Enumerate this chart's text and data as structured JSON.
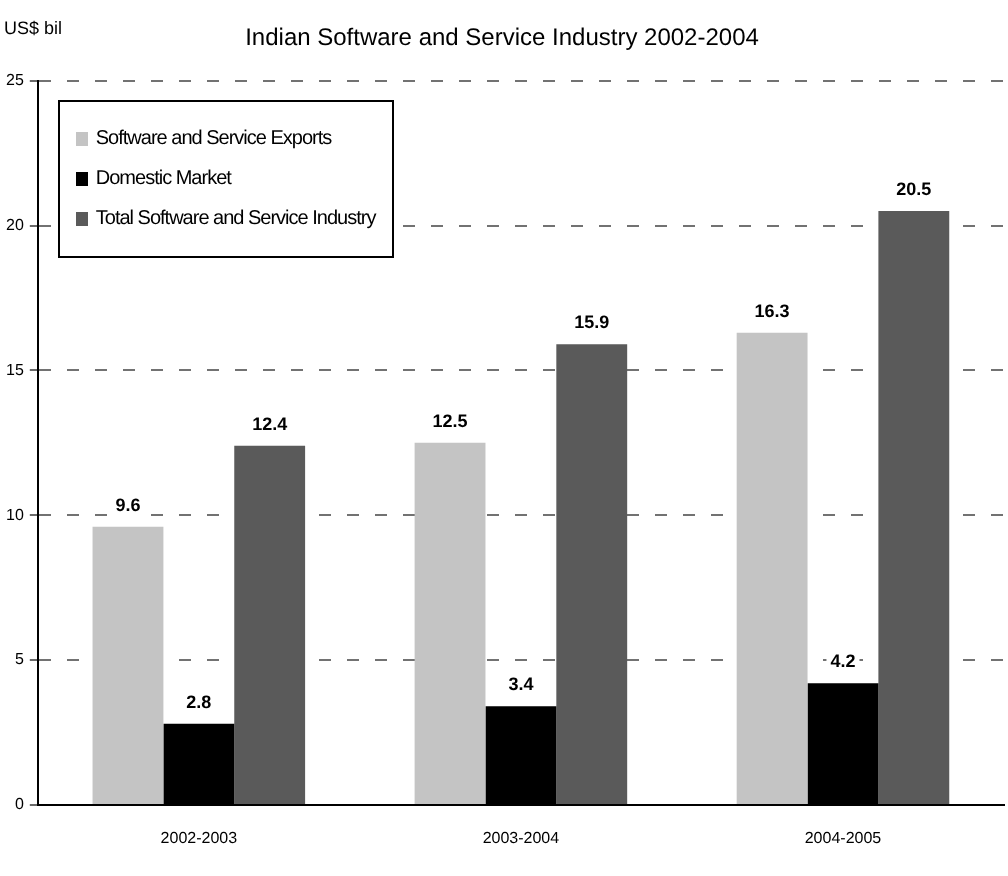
{
  "chart_data": {
    "type": "bar",
    "title": "Indian Software and Service Industry 2002-2004",
    "ylabel": "US$ bil",
    "categories": [
      "2002-2003",
      "2003-2004",
      "2004-2005"
    ],
    "series": [
      {
        "name": "Software and Service Exports",
        "color": "#c4c4c4",
        "values": [
          9.6,
          12.5,
          16.3
        ]
      },
      {
        "name": "Domestic Market",
        "color": "#000000",
        "values": [
          2.8,
          3.4,
          4.2
        ]
      },
      {
        "name": "Total Software and Service Industry",
        "color": "#5a5a5a",
        "values": [
          12.4,
          15.9,
          20.5
        ]
      }
    ],
    "ylim": [
      0,
      25
    ],
    "yticks": [
      0,
      5,
      10,
      15,
      20,
      25
    ],
    "grid": "y",
    "legend": "top left",
    "data_labels": true
  }
}
